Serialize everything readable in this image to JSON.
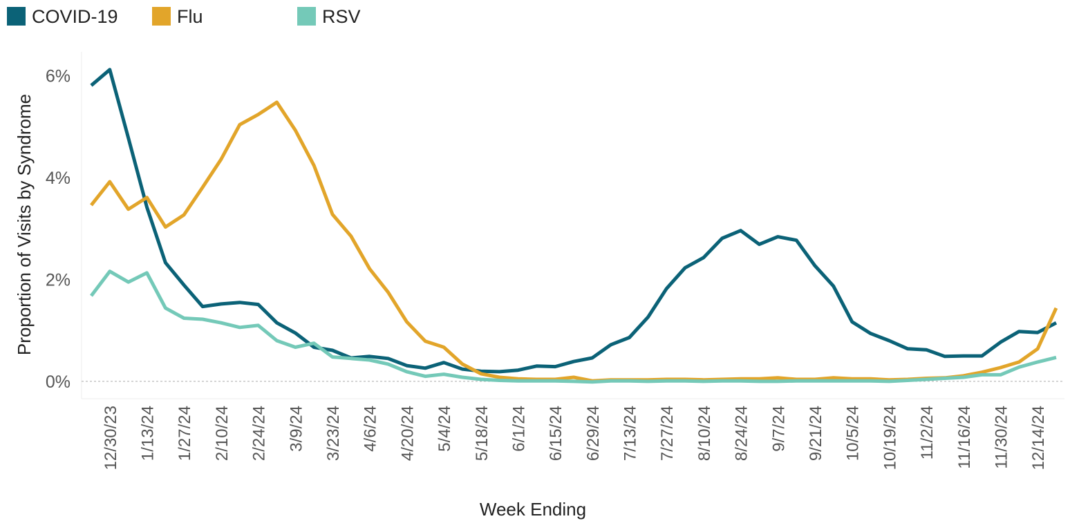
{
  "chart_data": {
    "type": "line",
    "x_label": "Week Ending",
    "y_label": "Proportion of Visits by Syndrome",
    "categories": [
      null,
      "12/30/23",
      null,
      "1/13/24",
      null,
      "1/27/24",
      null,
      "2/10/24",
      null,
      "2/24/24",
      null,
      "3/9/24",
      null,
      "3/23/24",
      null,
      "4/6/24",
      null,
      "4/20/24",
      null,
      "5/4/24",
      null,
      "5/18/24",
      null,
      "6/1/24",
      null,
      "6/15/24",
      null,
      "6/29/24",
      null,
      "7/13/24",
      null,
      "7/27/24",
      null,
      "8/10/24",
      null,
      "8/24/24",
      null,
      "9/7/24",
      null,
      "9/21/24",
      null,
      "10/5/24",
      null,
      "10/19/24",
      null,
      "11/2/24",
      null,
      "11/16/24",
      null,
      "11/30/24",
      null,
      "12/14/24",
      null
    ],
    "series": [
      {
        "name": "COVID-19",
        "color": "#0b6277",
        "values": [
          5.81,
          6.12,
          4.78,
          3.42,
          2.33,
          1.89,
          1.47,
          1.52,
          1.55,
          1.51,
          1.15,
          0.95,
          0.67,
          0.61,
          0.46,
          0.49,
          0.45,
          0.31,
          0.26,
          0.37,
          0.24,
          0.2,
          0.19,
          0.22,
          0.3,
          0.29,
          0.39,
          0.46,
          0.72,
          0.86,
          1.26,
          1.82,
          2.23,
          2.43,
          2.81,
          2.96,
          2.69,
          2.84,
          2.77,
          2.27,
          1.87,
          1.17,
          0.94,
          0.8,
          0.64,
          0.62,
          0.49,
          0.5,
          0.5,
          0.77,
          0.98,
          0.96,
          1.15
        ]
      },
      {
        "name": "Flu",
        "color": "#e2a52a",
        "values": [
          3.46,
          3.92,
          3.38,
          3.61,
          3.03,
          3.27,
          3.81,
          4.36,
          5.04,
          5.24,
          5.48,
          4.93,
          4.24,
          3.28,
          2.85,
          2.21,
          1.75,
          1.17,
          0.79,
          0.67,
          0.34,
          0.15,
          0.08,
          0.05,
          0.04,
          0.04,
          0.08,
          0.01,
          0.03,
          0.03,
          0.03,
          0.04,
          0.04,
          0.03,
          0.04,
          0.05,
          0.05,
          0.07,
          0.04,
          0.04,
          0.07,
          0.05,
          0.05,
          0.03,
          0.04,
          0.06,
          0.07,
          0.11,
          0.18,
          0.27,
          0.38,
          0.64,
          1.44
        ]
      },
      {
        "name": "RSV",
        "color": "#74c9b8",
        "values": [
          1.68,
          2.16,
          1.95,
          2.13,
          1.44,
          1.24,
          1.22,
          1.15,
          1.06,
          1.1,
          0.8,
          0.67,
          0.75,
          0.48,
          0.45,
          0.42,
          0.34,
          0.19,
          0.1,
          0.14,
          0.08,
          0.04,
          0.02,
          0.01,
          0.01,
          0.01,
          0,
          -0.01,
          0.01,
          0.01,
          0,
          0.01,
          0.01,
          0,
          0.01,
          0.01,
          0,
          0,
          0.01,
          0.01,
          0.01,
          0.01,
          0.01,
          0,
          0.02,
          0.04,
          0.06,
          0.08,
          0.13,
          0.13,
          0.28,
          0.38,
          0.47
        ]
      }
    ],
    "ylim": [
      -0.34,
      6.47
    ],
    "yticks": [
      {
        "value": 0,
        "label": "0%"
      },
      {
        "value": 2,
        "label": "2%"
      },
      {
        "value": 4,
        "label": "4%"
      },
      {
        "value": 6,
        "label": "6%"
      }
    ]
  }
}
